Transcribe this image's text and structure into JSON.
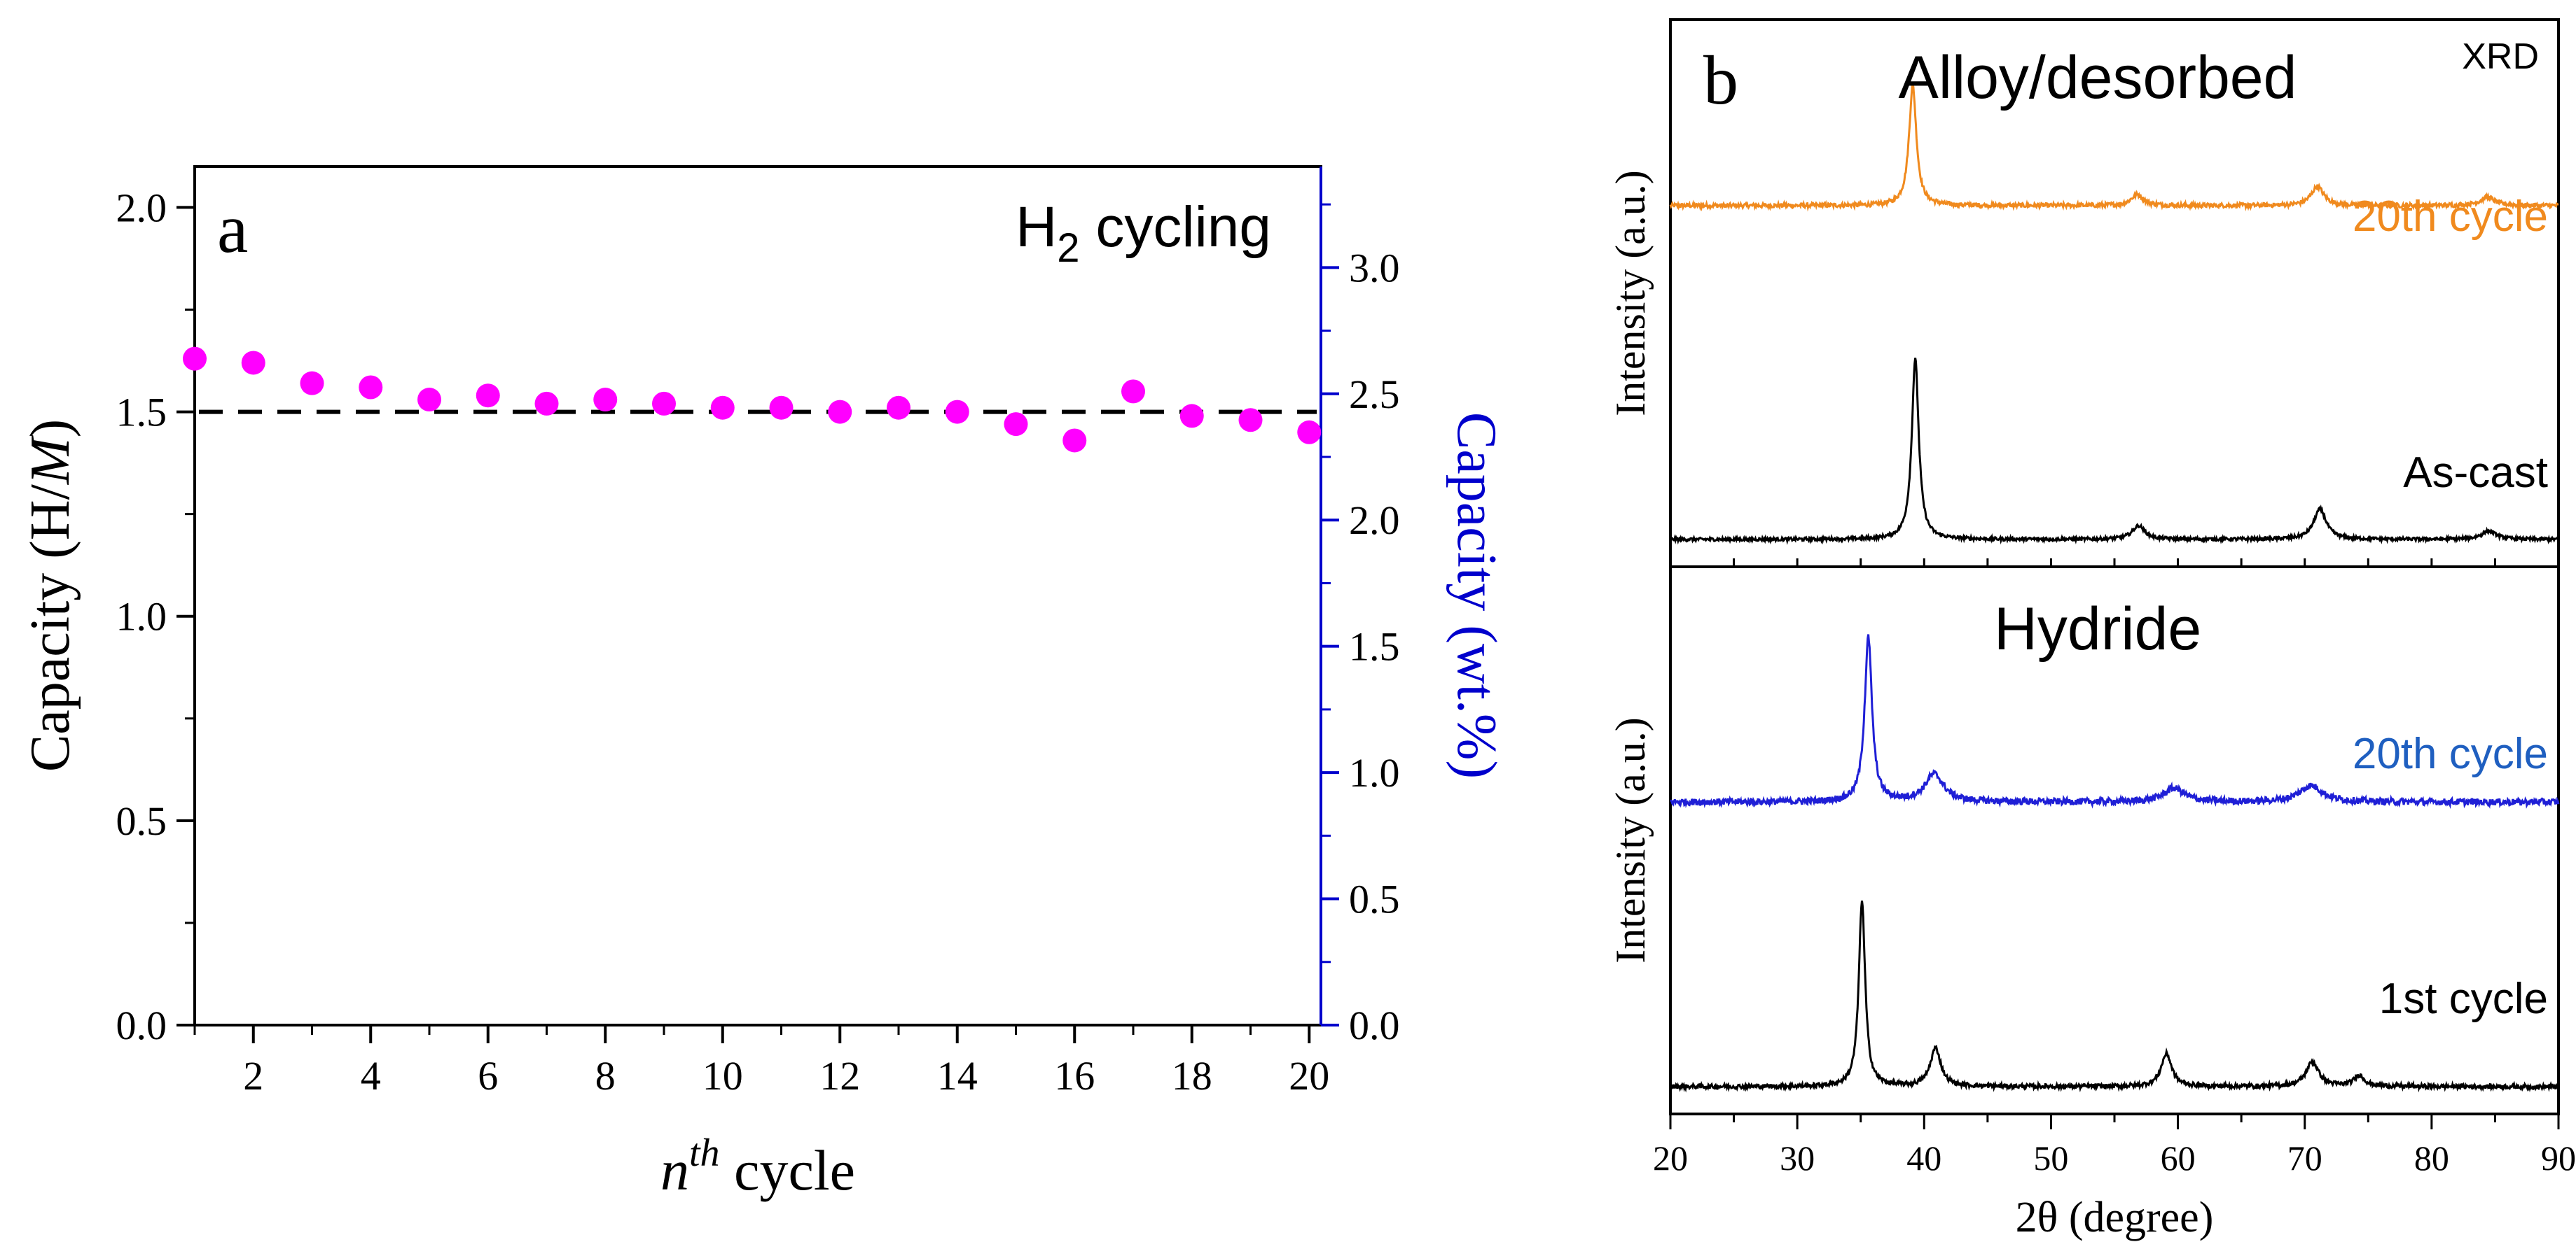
{
  "chart_data": [
    {
      "type": "scatter",
      "panel_label": "a",
      "title": "H",
      "title_subscript": "2",
      "title_suffix": " cycling",
      "xlabel": "n",
      "xlabel_superscript": "th",
      "xlabel_suffix": " cycle",
      "xlim": [
        1,
        20.2
      ],
      "xticks": [
        2,
        4,
        6,
        8,
        10,
        12,
        14,
        16,
        18,
        20
      ],
      "xtick_labels": [
        "2",
        "4",
        "6",
        "8",
        "10",
        "12",
        "14",
        "16",
        "18",
        "20"
      ],
      "ylabel_left_prefix": "Capacity (H/",
      "ylabel_left_italic": "M",
      "ylabel_left_suffix": ")",
      "ylim_left": [
        0,
        2.1
      ],
      "yticks_left": [
        0,
        0.5,
        1.0,
        1.5,
        2.0
      ],
      "ytick_labels_left": [
        "0.0",
        "0.5",
        "1.0",
        "1.5",
        "2.0"
      ],
      "ylabel_right": "Capacity (wt.%)",
      "ylim_right": [
        0,
        3.4
      ],
      "yticks_right": [
        0,
        0.5,
        1.0,
        1.5,
        2.0,
        2.5,
        3.0
      ],
      "ytick_labels_right": [
        "0.0",
        "0.5",
        "1.0",
        "1.5",
        "2.0",
        "2.5",
        "3.0"
      ],
      "reference_line": 1.5,
      "series": [
        {
          "name": "capacity",
          "color": "#ff00ff",
          "x": [
            1,
            2,
            3,
            4,
            5,
            6,
            7,
            8,
            9,
            10,
            11,
            12,
            13,
            14,
            15,
            16,
            17,
            18,
            19,
            20
          ],
          "y": [
            1.63,
            1.62,
            1.57,
            1.56,
            1.53,
            1.54,
            1.52,
            1.53,
            1.52,
            1.51,
            1.51,
            1.5,
            1.51,
            1.5,
            1.47,
            1.43,
            1.55,
            1.49,
            1.48,
            1.45
          ]
        }
      ],
      "colors": {
        "axis": "#000000",
        "right_axis": "#0000cc",
        "reference": "#000000"
      }
    },
    {
      "type": "line",
      "panel_label": "b",
      "corner_note": "XRD",
      "xlabel": "2θ (degree)",
      "xlim": [
        20,
        90
      ],
      "xticks": [
        20,
        30,
        40,
        50,
        60,
        70,
        80,
        90
      ],
      "xtick_labels": [
        "20",
        "30",
        "40",
        "50",
        "60",
        "70",
        "80",
        "90"
      ],
      "subpanels": [
        {
          "title": "Alloy/desorbed",
          "ylabel": "Intensity (a.u.)",
          "series": [
            {
              "name": "20th cycle",
              "color": "#f08a1e",
              "baseline": 0.66,
              "peaks": [
                [
                  39.1,
                  0.22,
                  0.35
                ],
                [
                  56.8,
                  0.02,
                  0.6
                ],
                [
                  71.0,
                  0.035,
                  0.6
                ],
                [
                  84.4,
                  0.015,
                  0.7
                ]
              ],
              "noise": 0.004
            },
            {
              "name": "As-cast",
              "color": "#000000",
              "baseline": 0.05,
              "peaks": [
                [
                  39.3,
                  0.33,
                  0.33
                ],
                [
                  56.9,
                  0.025,
                  0.6
                ],
                [
                  71.2,
                  0.055,
                  0.6
                ],
                [
                  84.5,
                  0.015,
                  0.7
                ]
              ],
              "noise": 0.003
            }
          ]
        },
        {
          "title": "Hydride",
          "ylabel": "Intensity (a.u.)",
          "series": [
            {
              "name": "20th cycle",
              "color": "#1f1fd6",
              "baseline": 0.57,
              "peaks": [
                [
                  35.6,
                  0.3,
                  0.35
                ],
                [
                  40.8,
                  0.05,
                  0.9
                ],
                [
                  59.7,
                  0.025,
                  1.0
                ],
                [
                  70.5,
                  0.03,
                  1.1
                ]
              ],
              "noise": 0.006
            },
            {
              "name": "1st  cycle",
              "color": "#000000",
              "baseline": 0.05,
              "peaks": [
                [
                  35.1,
                  0.34,
                  0.3
                ],
                [
                  40.9,
                  0.07,
                  0.5
                ],
                [
                  59.1,
                  0.06,
                  0.5
                ],
                [
                  70.6,
                  0.045,
                  0.6
                ],
                [
                  74.3,
                  0.02,
                  0.5
                ]
              ],
              "noise": 0.004
            }
          ]
        }
      ]
    }
  ]
}
